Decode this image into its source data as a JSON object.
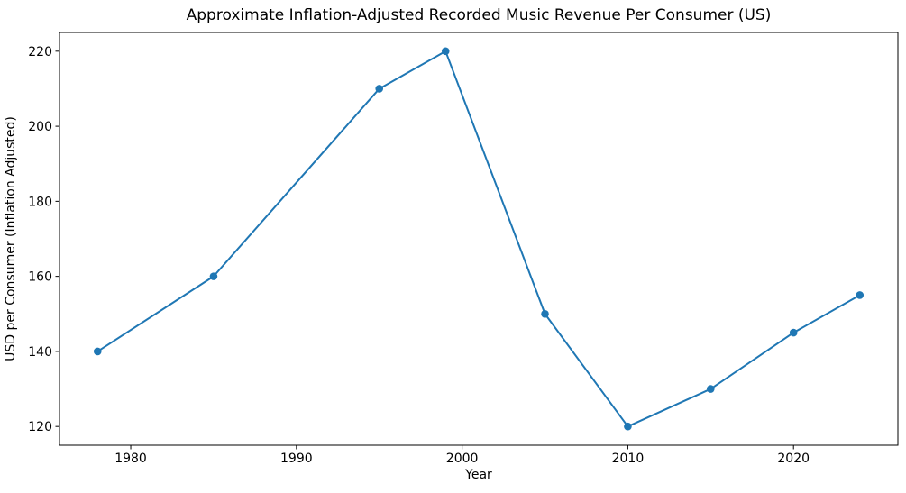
{
  "chart_data": {
    "type": "line",
    "title": "Approximate Inflation-Adjusted Recorded Music Revenue Per Consumer (US)",
    "xlabel": "Year",
    "ylabel": "USD per Consumer (Inflation Adjusted)",
    "series": [
      {
        "name": "USD per consumer (inflation adjusted)",
        "x": [
          1978,
          1985,
          1995,
          1999,
          2005,
          2010,
          2015,
          2020,
          2024
        ],
        "values": [
          140,
          160,
          210,
          220,
          150,
          120,
          130,
          145,
          155
        ]
      }
    ],
    "xticks": [
      1980,
      1990,
      2000,
      2010,
      2020
    ],
    "yticks": [
      120,
      140,
      160,
      180,
      200,
      220
    ],
    "xlim": [
      1975.7,
      2026.3
    ],
    "ylim": [
      115,
      225
    ],
    "grid": false,
    "legend_position": "none",
    "line_color": "#1f77b4",
    "marker": "circle",
    "marker_radius": 4.3,
    "line_width": 2,
    "axis_color": "#000000",
    "text_color": "#000000",
    "background_color": "#ffffff"
  }
}
